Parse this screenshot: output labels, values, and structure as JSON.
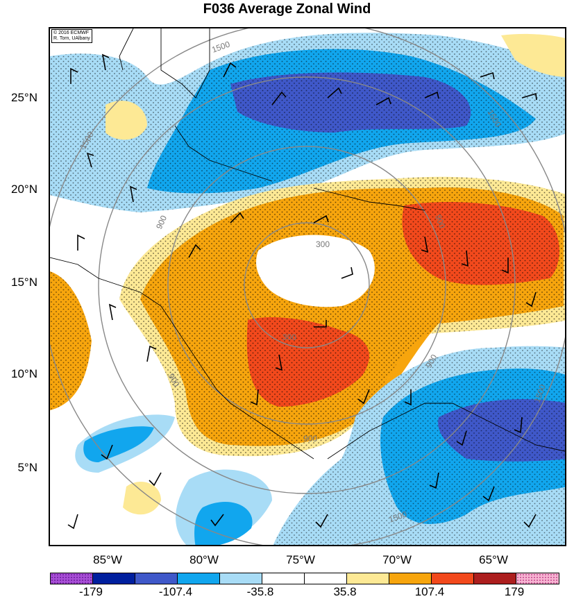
{
  "title": "F036 Average Zonal Wind",
  "credit": {
    "line1": "© 2016 ECMWF",
    "line2": "R. Torn, UAlbany"
  },
  "lat_labels": [
    "25°N",
    "20°N",
    "15°N",
    "10°N",
    "5°N"
  ],
  "lon_labels": [
    "85°W",
    "80°W",
    "75°W",
    "70°W",
    "65°W"
  ],
  "colorbar": {
    "colors": [
      "#a84fd6",
      "#001f9e",
      "#3f58c9",
      "#11a6ee",
      "#a8dcf6",
      "#ffffff",
      "#ffffff",
      "#fde995",
      "#f7a50d",
      "#f2491c",
      "#ac1e1e",
      "#f7b4d2"
    ],
    "labels": [
      "-179",
      "-107.4",
      "-35.8",
      "35.8",
      "107.4",
      "179"
    ]
  },
  "contour_labels": [
    "1500",
    "1500",
    "1500",
    "1500",
    "1500",
    "900",
    "900",
    "900",
    "900",
    "900",
    "300",
    "300"
  ],
  "map_colors": {
    "strong_positive": "#f2491c",
    "positive": "#f7a50d",
    "weak_positive": "#fde995",
    "weak_negative": "#a8dcf6",
    "negative": "#11a6ee",
    "strong_negative": "#3f58c9"
  }
}
